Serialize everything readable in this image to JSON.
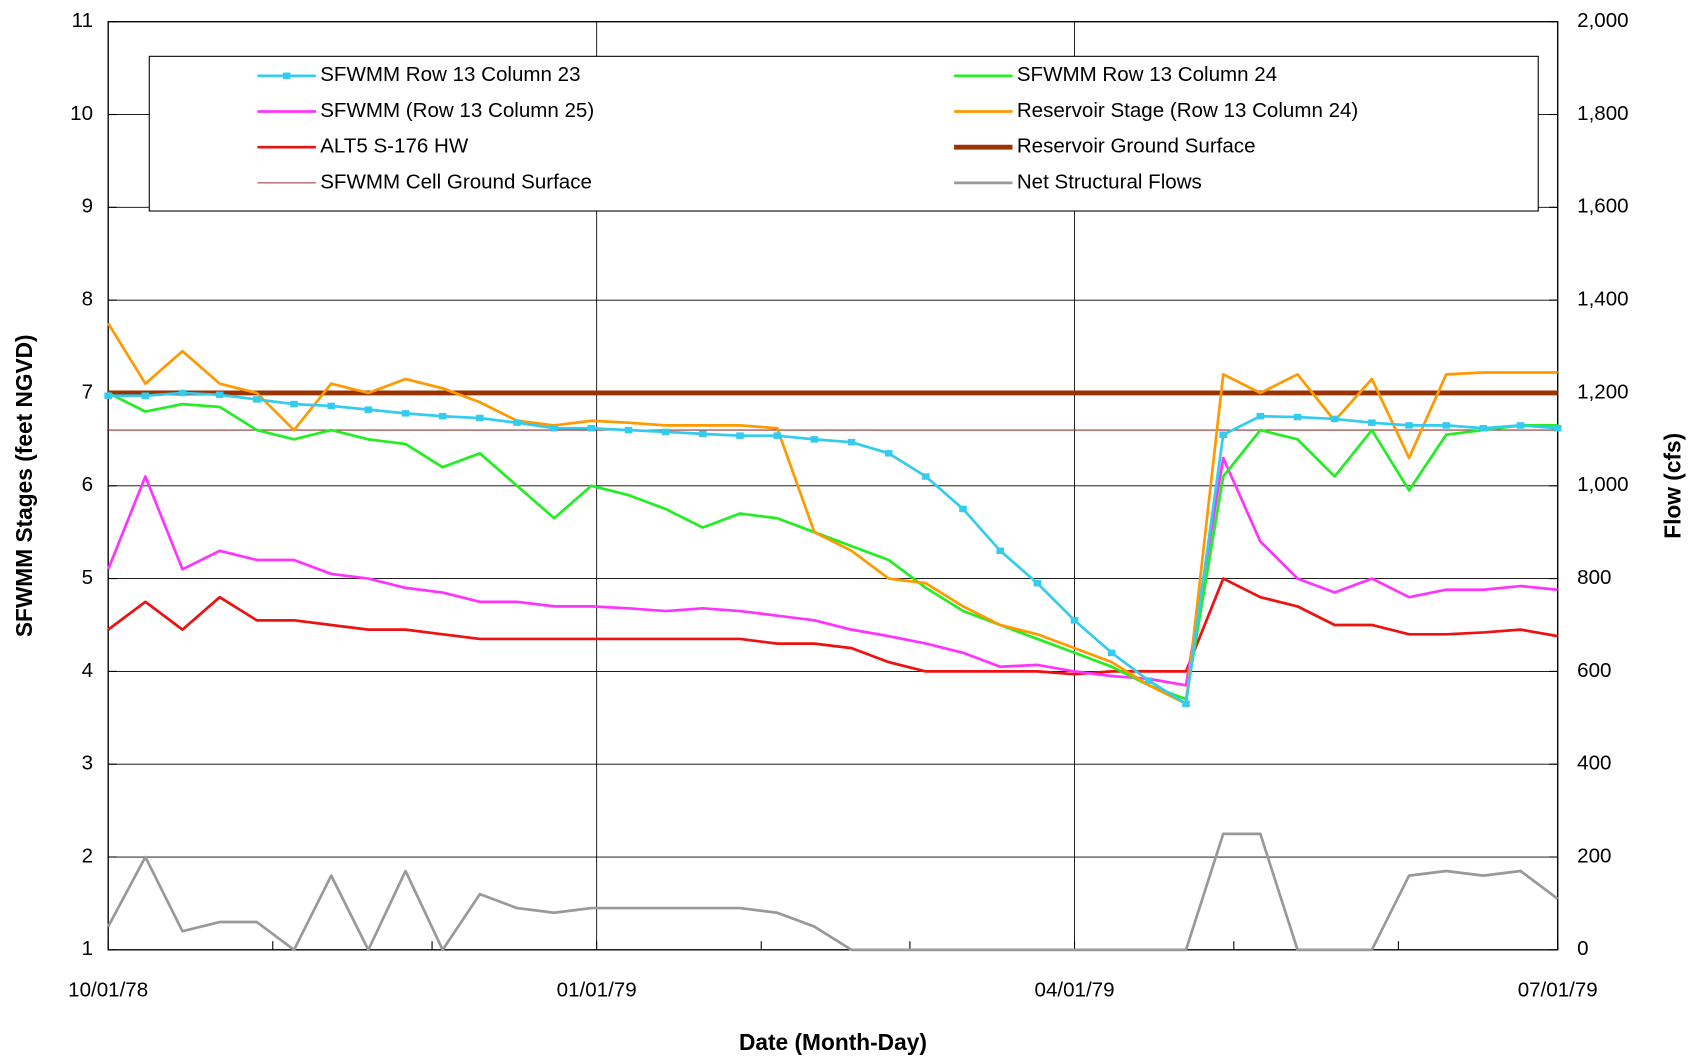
{
  "chart_data": {
    "type": "line",
    "xlabel": "Date (Month-Day)",
    "ylabel": "SFWMM Stages (feet NGVD)",
    "y2label": "Flow (cfs)",
    "x": [
      "10/01/78",
      "10/08/78",
      "10/15/78",
      "10/22/78",
      "10/29/78",
      "11/05/78",
      "11/12/78",
      "11/19/78",
      "11/26/78",
      "12/03/78",
      "12/10/78",
      "12/17/78",
      "12/24/78",
      "12/31/78",
      "01/07/79",
      "01/14/79",
      "01/21/79",
      "01/28/79",
      "02/04/79",
      "02/11/79",
      "02/18/79",
      "02/25/79",
      "03/04/79",
      "03/11/79",
      "03/18/79",
      "03/25/79",
      "04/01/79",
      "04/08/79",
      "04/15/79",
      "04/22/79",
      "04/29/79",
      "05/06/79",
      "05/13/79",
      "05/20/79",
      "05/27/79",
      "06/03/79",
      "06/10/79",
      "06/17/79",
      "06/24/79",
      "07/01/79"
    ],
    "xlim": [
      "10/01/78",
      "07/01/79"
    ],
    "xticks": [
      "10/01/78",
      "01/01/79",
      "04/01/79",
      "07/01/79"
    ],
    "xminor_ticks": [
      "11/01/78",
      "12/01/78",
      "02/01/79",
      "03/01/79",
      "05/01/79",
      "06/01/79"
    ],
    "ylim": [
      1,
      11
    ],
    "yticks": [
      1,
      2,
      3,
      4,
      5,
      6,
      7,
      8,
      9,
      10,
      11
    ],
    "y2lim": [
      0,
      2000
    ],
    "y2ticks": [
      0,
      {
        "value": 200,
        "label": "200"
      },
      {
        "value": 400,
        "label": "400"
      },
      {
        "value": 600,
        "label": "600"
      },
      {
        "value": 800,
        "label": "800"
      },
      {
        "value": 1000,
        "label": "1,000"
      },
      {
        "value": 1200,
        "label": "1,200"
      },
      {
        "value": 1400,
        "label": "1,400"
      },
      {
        "value": 1600,
        "label": "1,600"
      },
      {
        "value": 1800,
        "label": "1,800"
      },
      {
        "value": 2000,
        "label": "2,000"
      }
    ],
    "grid": true,
    "series": [
      {
        "name": "SFWMM Row 13 Column 23",
        "color": "#33ccee",
        "line_width": 2.5,
        "marker": "square",
        "values": [
          6.97,
          6.97,
          7.0,
          6.98,
          6.93,
          6.88,
          6.86,
          6.82,
          6.78,
          6.75,
          6.73,
          6.68,
          6.62,
          6.62,
          6.6,
          6.58,
          6.56,
          6.54,
          6.54,
          6.5,
          6.47,
          6.35,
          6.1,
          5.75,
          5.3,
          4.95,
          4.55,
          4.2,
          3.9,
          3.65,
          6.55,
          6.75,
          6.74,
          6.72,
          6.68,
          6.65,
          6.65,
          6.62,
          6.65,
          6.62
        ]
      },
      {
        "name": "SFWMM Row 13 Column 24",
        "color": "#22ee22",
        "line_width": 2.5,
        "values": [
          7.0,
          6.8,
          6.88,
          6.85,
          6.6,
          6.5,
          6.6,
          6.5,
          6.45,
          6.2,
          6.35,
          6.0,
          5.65,
          6.0,
          5.9,
          5.75,
          5.55,
          5.7,
          5.65,
          5.5,
          5.35,
          5.2,
          4.9,
          4.65,
          4.5,
          4.35,
          4.2,
          4.05,
          3.85,
          3.7,
          6.1,
          6.6,
          6.5,
          6.1,
          6.6,
          5.95,
          6.55,
          6.6,
          6.65,
          6.65
        ]
      },
      {
        "name": "SFWMM (Row 13 Column 25)",
        "color": "#ff33ff",
        "line_width": 2.5,
        "values": [
          5.1,
          6.1,
          5.1,
          5.3,
          5.2,
          5.2,
          5.05,
          5.0,
          4.9,
          4.85,
          4.75,
          4.75,
          4.7,
          4.7,
          4.68,
          4.65,
          4.68,
          4.65,
          4.6,
          4.55,
          4.45,
          4.38,
          4.3,
          4.2,
          4.05,
          4.07,
          4.0,
          3.95,
          3.92,
          3.85,
          6.3,
          5.4,
          5.0,
          4.85,
          5.0,
          4.8,
          4.88,
          4.88,
          4.92,
          4.88
        ]
      },
      {
        "name": "Reservoir Stage (Row 13 Column 24)",
        "color": "#ff9900",
        "line_width": 2.5,
        "values": [
          7.75,
          7.1,
          7.45,
          7.1,
          7.0,
          6.6,
          7.1,
          7.0,
          7.15,
          7.05,
          6.9,
          6.7,
          6.65,
          6.7,
          6.68,
          6.65,
          6.65,
          6.65,
          6.62,
          5.5,
          5.3,
          5.0,
          4.95,
          4.7,
          4.5,
          4.4,
          4.25,
          4.1,
          3.85,
          3.65,
          7.2,
          7.0,
          7.2,
          6.7,
          7.15,
          6.3,
          7.2,
          7.22,
          7.22,
          7.22
        ]
      },
      {
        "name": "ALT5 S-176 HW",
        "color": "#ee1111",
        "line_width": 2.5,
        "values": [
          4.45,
          4.75,
          4.45,
          4.8,
          4.55,
          4.55,
          4.5,
          4.45,
          4.45,
          4.4,
          4.35,
          4.35,
          4.35,
          4.35,
          4.35,
          4.35,
          4.35,
          4.35,
          4.3,
          4.3,
          4.25,
          4.1,
          4.0,
          4.0,
          4.0,
          4.0,
          3.97,
          4.0,
          4.0,
          4.0,
          5.0,
          4.8,
          4.7,
          4.5,
          4.5,
          4.4,
          4.4,
          4.42,
          4.45,
          4.38
        ]
      },
      {
        "name": "Reservoir Ground Surface",
        "color": "#993300",
        "line_width": 4.5,
        "values": [
          7,
          7,
          7,
          7,
          7,
          7,
          7,
          7,
          7,
          7,
          7,
          7,
          7,
          7,
          7,
          7,
          7,
          7,
          7,
          7,
          7,
          7,
          7,
          7,
          7,
          7,
          7,
          7,
          7,
          7,
          7,
          7,
          7,
          7,
          7,
          7,
          7,
          7,
          7,
          7
        ]
      },
      {
        "name": "SFWMM Cell Ground Surface",
        "color": "#993333",
        "line_width": 1,
        "values": [
          6.6,
          6.6,
          6.6,
          6.6,
          6.6,
          6.6,
          6.6,
          6.6,
          6.6,
          6.6,
          6.6,
          6.6,
          6.6,
          6.6,
          6.6,
          6.6,
          6.6,
          6.6,
          6.6,
          6.6,
          6.6,
          6.6,
          6.6,
          6.6,
          6.6,
          6.6,
          6.6,
          6.6,
          6.6,
          6.6,
          6.6,
          6.6,
          6.6,
          6.6,
          6.6,
          6.6,
          6.6,
          6.6,
          6.6,
          6.6
        ]
      },
      {
        "name": "Net Structural Flows",
        "color": "#999999",
        "line_width": 2.5,
        "axis": "y2",
        "values": [
          50,
          200,
          40,
          60,
          60,
          0,
          160,
          0,
          170,
          0,
          120,
          90,
          80,
          90,
          90,
          90,
          90,
          90,
          80,
          50,
          0,
          0,
          0,
          0,
          0,
          0,
          0,
          0,
          0,
          0,
          250,
          250,
          0,
          0,
          0,
          160,
          170,
          160,
          170,
          110
        ]
      }
    ]
  }
}
